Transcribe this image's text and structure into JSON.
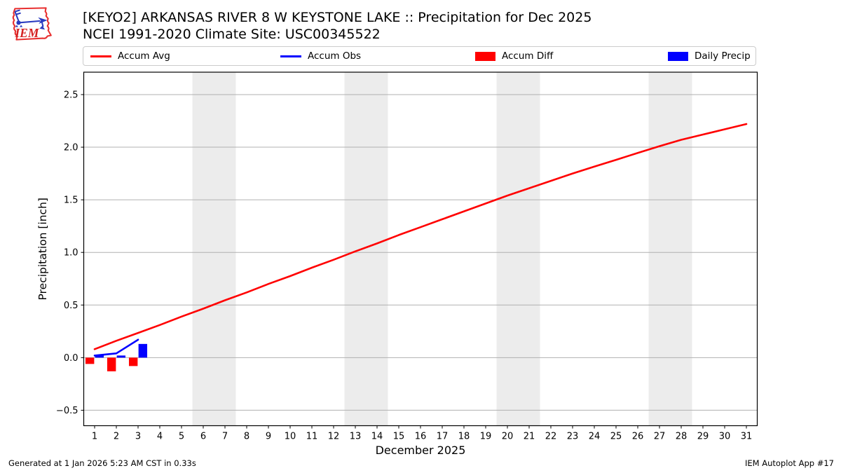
{
  "header": {
    "logo_text": "IEM",
    "title_line1": "[KEYO2] ARKANSAS RIVER 8 W KEYSTONE LAKE :: Precipitation for Dec 2025",
    "title_line2": "NCEI 1991-2020 Climate Site: USC00345522"
  },
  "legend": {
    "items": [
      {
        "label": "Accum Avg",
        "type": "line",
        "color": "#ff0000"
      },
      {
        "label": "Accum Obs",
        "type": "line",
        "color": "#0000ff"
      },
      {
        "label": "Accum Diff",
        "type": "patch",
        "color": "#ff0000"
      },
      {
        "label": "Daily Precip",
        "type": "patch",
        "color": "#0000ff"
      }
    ]
  },
  "chart_data": {
    "type": "line+bar",
    "title": "[KEYO2] ARKANSAS RIVER 8 W KEYSTONE LAKE :: Precipitation for Dec 2025",
    "subtitle": "NCEI 1991-2020 Climate Site: USC00345522",
    "xlabel": "December 2025",
    "ylabel": "Precipitation [inch]",
    "xlim": [
      0.5,
      31.5
    ],
    "ylim": [
      -0.647,
      2.713
    ],
    "grid": true,
    "grid_color": "#b0b0b0",
    "weekend_band_color": "#ececec",
    "weekend_bands": [
      [
        5.5,
        7.5
      ],
      [
        12.5,
        14.5
      ],
      [
        19.5,
        21.5
      ],
      [
        26.5,
        28.5
      ]
    ],
    "xticks": [
      1,
      2,
      3,
      4,
      5,
      6,
      7,
      8,
      9,
      10,
      11,
      12,
      13,
      14,
      15,
      16,
      17,
      18,
      19,
      20,
      21,
      22,
      23,
      24,
      25,
      26,
      27,
      28,
      29,
      30,
      31
    ],
    "xtick_labels": [
      "1",
      "2",
      "3",
      "4",
      "5",
      "6",
      "7",
      "8",
      "9",
      "10",
      "11",
      "12",
      "13",
      "14",
      "15",
      "16",
      "17",
      "18",
      "19",
      "20",
      "21",
      "22",
      "23",
      "24",
      "25",
      "26",
      "27",
      "28",
      "29",
      "30",
      "31"
    ],
    "yticks": [
      -0.5,
      0.0,
      0.5,
      1.0,
      1.5,
      2.0,
      2.5
    ],
    "ytick_labels": [
      "−0.5",
      "0.0",
      "0.5",
      "1.0",
      "1.5",
      "2.0",
      "2.5"
    ],
    "series": [
      {
        "name": "Accum Avg",
        "type": "line",
        "color": "#ff0000",
        "x": [
          1,
          2,
          3,
          4,
          5,
          6,
          7,
          8,
          9,
          10,
          11,
          12,
          13,
          14,
          15,
          16,
          17,
          18,
          19,
          20,
          21,
          22,
          23,
          24,
          25,
          26,
          27,
          28,
          29,
          30,
          31
        ],
        "y": [
          0.08,
          0.16,
          0.235,
          0.31,
          0.39,
          0.465,
          0.545,
          0.62,
          0.7,
          0.775,
          0.855,
          0.93,
          1.01,
          1.085,
          1.165,
          1.24,
          1.315,
          1.39,
          1.465,
          1.54,
          1.61,
          1.68,
          1.75,
          1.815,
          1.88,
          1.945,
          2.01,
          2.07,
          2.12,
          2.17,
          2.22
        ]
      },
      {
        "name": "Accum Obs",
        "type": "line",
        "color": "#0000ff",
        "x": [
          1,
          2,
          3
        ],
        "y": [
          0.02,
          0.04,
          0.17
        ]
      },
      {
        "name": "Accum Diff",
        "type": "bar",
        "color": "#ff0000",
        "bar_offset": -0.22,
        "bar_width": 0.4,
        "x": [
          1,
          2,
          3
        ],
        "y": [
          -0.06,
          -0.13,
          -0.08
        ]
      },
      {
        "name": "Daily Precip",
        "type": "bar",
        "color": "#0000ff",
        "bar_offset": 0.22,
        "bar_width": 0.4,
        "x": [
          1,
          2,
          3
        ],
        "y": [
          0.02,
          0.02,
          0.13
        ]
      }
    ]
  },
  "footer": {
    "left": "Generated at 1 Jan 2026 5:23 AM CST in 0.33s",
    "right": "IEM Autoplot App #17"
  }
}
